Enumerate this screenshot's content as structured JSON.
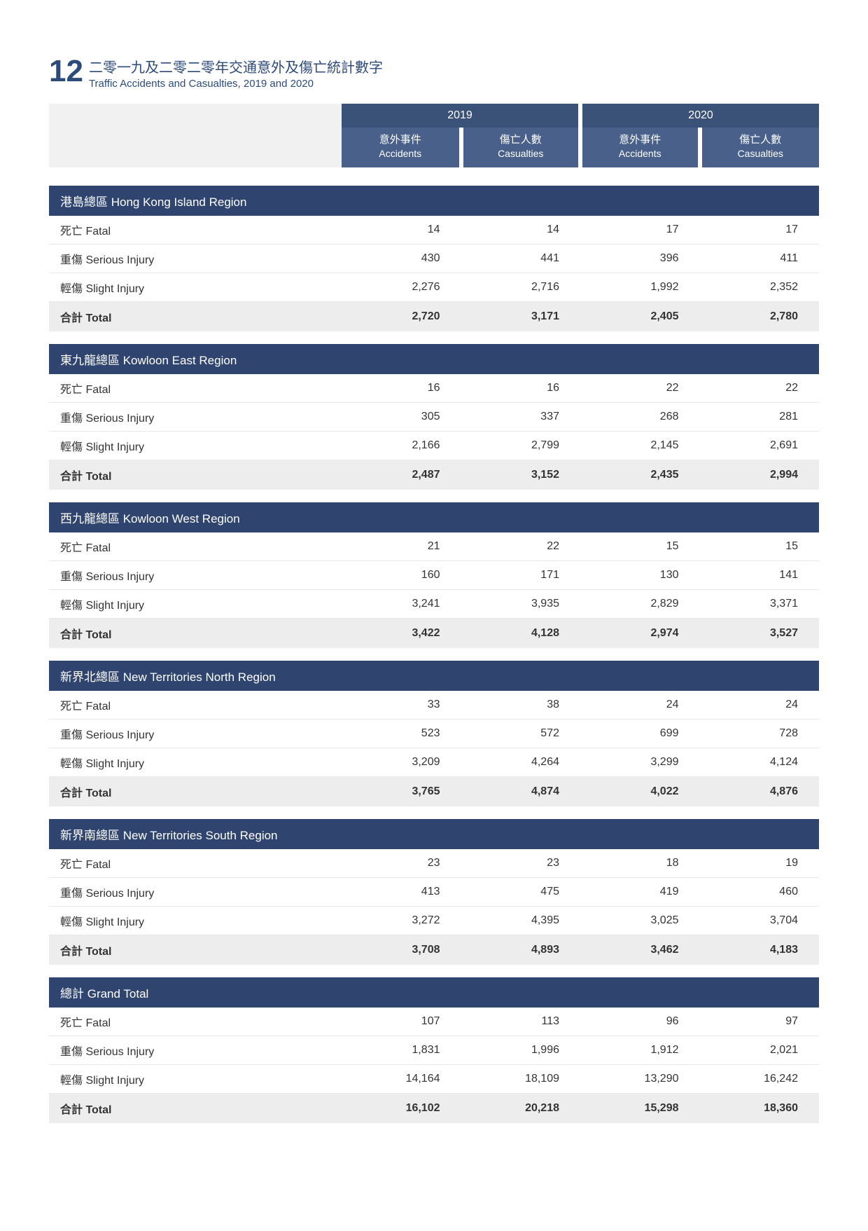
{
  "header": {
    "number": "12",
    "title_zh": "二零一九及二零二零年交通意外及傷亡統計數字",
    "title_en": "Traffic Accidents and Casualties, 2019 and 2020"
  },
  "colors": {
    "brand": "#2c4b7a",
    "year_bg": "#3a5178",
    "sub_bg": "#49618a",
    "section_bg": "#2f446e",
    "total_bg": "#ededed",
    "blank_bg": "#f1f1f1",
    "row_border": "#e8e8e8"
  },
  "years": [
    "2019",
    "2020"
  ],
  "subheaders": {
    "accidents_zh": "意外事件",
    "accidents_en": "Accidents",
    "casualties_zh": "傷亡人數",
    "casualties_en": "Casualties"
  },
  "row_labels": {
    "fatal": "死亡 Fatal",
    "serious": "重傷 Serious Injury",
    "slight": "輕傷 Slight Injury",
    "total": "合計 Total"
  },
  "sections": [
    {
      "title": "港島總區 Hong Kong Island Region",
      "rows": {
        "fatal": [
          "14",
          "14",
          "17",
          "17"
        ],
        "serious": [
          "430",
          "441",
          "396",
          "411"
        ],
        "slight": [
          "2,276",
          "2,716",
          "1,992",
          "2,352"
        ],
        "total": [
          "2,720",
          "3,171",
          "2,405",
          "2,780"
        ]
      }
    },
    {
      "title": "東九龍總區 Kowloon East Region",
      "rows": {
        "fatal": [
          "16",
          "16",
          "22",
          "22"
        ],
        "serious": [
          "305",
          "337",
          "268",
          "281"
        ],
        "slight": [
          "2,166",
          "2,799",
          "2,145",
          "2,691"
        ],
        "total": [
          "2,487",
          "3,152",
          "2,435",
          "2,994"
        ]
      }
    },
    {
      "title": "西九龍總區 Kowloon West Region",
      "rows": {
        "fatal": [
          "21",
          "22",
          "15",
          "15"
        ],
        "serious": [
          "160",
          "171",
          "130",
          "141"
        ],
        "slight": [
          "3,241",
          "3,935",
          "2,829",
          "3,371"
        ],
        "total": [
          "3,422",
          "4,128",
          "2,974",
          "3,527"
        ]
      }
    },
    {
      "title": "新界北總區 New Territories North Region",
      "rows": {
        "fatal": [
          "33",
          "38",
          "24",
          "24"
        ],
        "serious": [
          "523",
          "572",
          "699",
          "728"
        ],
        "slight": [
          "3,209",
          "4,264",
          "3,299",
          "4,124"
        ],
        "total": [
          "3,765",
          "4,874",
          "4,022",
          "4,876"
        ]
      }
    },
    {
      "title": "新界南總區 New Territories South Region",
      "rows": {
        "fatal": [
          "23",
          "23",
          "18",
          "19"
        ],
        "serious": [
          "413",
          "475",
          "419",
          "460"
        ],
        "slight": [
          "3,272",
          "4,395",
          "3,025",
          "3,704"
        ],
        "total": [
          "3,708",
          "4,893",
          "3,462",
          "4,183"
        ]
      }
    },
    {
      "title": "總計 Grand Total",
      "rows": {
        "fatal": [
          "107",
          "113",
          "96",
          "97"
        ],
        "serious": [
          "1,831",
          "1,996",
          "1,912",
          "2,021"
        ],
        "slight": [
          "14,164",
          "18,109",
          "13,290",
          "16,242"
        ],
        "total": [
          "16,102",
          "20,218",
          "15,298",
          "18,360"
        ]
      }
    }
  ]
}
